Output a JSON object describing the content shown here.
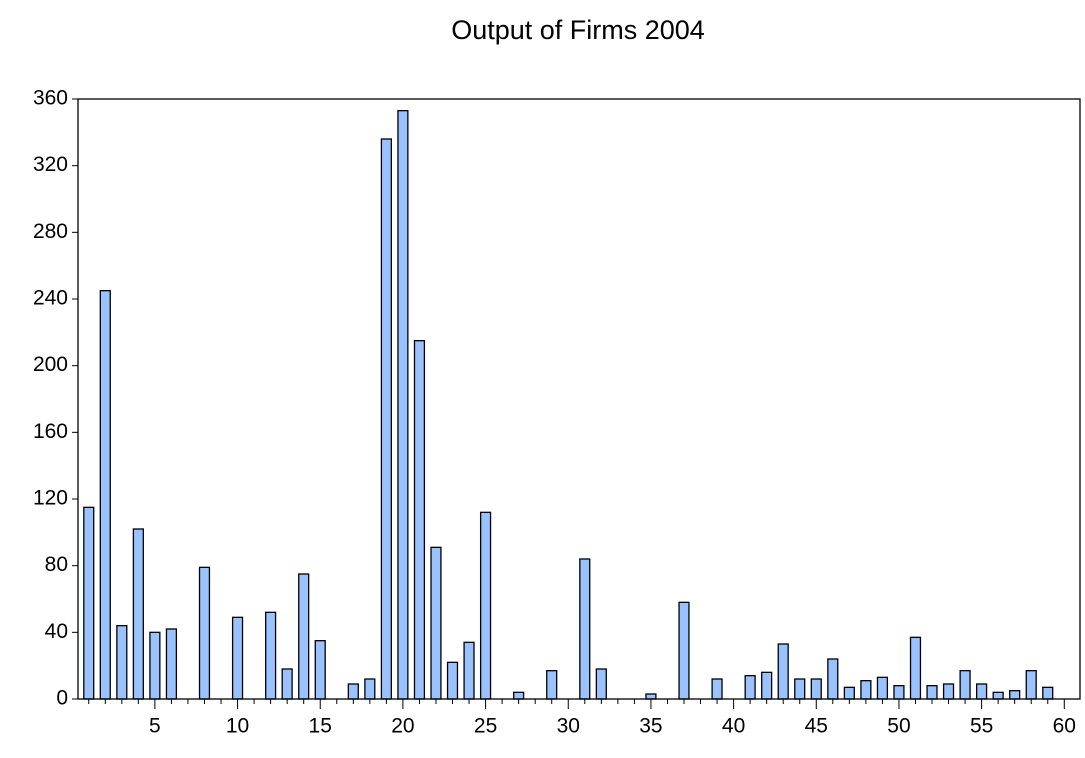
{
  "chart_data": {
    "type": "bar",
    "title": "Output of Firms 2004",
    "x": [
      1,
      2,
      3,
      4,
      5,
      6,
      8,
      10,
      12,
      13,
      14,
      15,
      17,
      18,
      19,
      20,
      21,
      22,
      23,
      24,
      25,
      27,
      29,
      31,
      32,
      35,
      37,
      39,
      41,
      42,
      43,
      44,
      45,
      46,
      47,
      48,
      49,
      50,
      51,
      52,
      53,
      54,
      55,
      56,
      57,
      58,
      59
    ],
    "values": [
      115,
      245,
      44,
      102,
      40,
      42,
      79,
      49,
      52,
      18,
      75,
      35,
      9,
      12,
      336,
      353,
      215,
      91,
      22,
      34,
      112,
      4,
      17,
      84,
      18,
      3,
      58,
      12,
      14,
      16,
      33,
      12,
      12,
      24,
      7,
      11,
      13,
      8,
      37,
      8,
      9,
      17,
      9,
      4,
      5,
      17,
      7
    ],
    "color": "#99c2ff",
    "xlim": [
      0.35,
      60.95
    ],
    "xticks": [
      5,
      10,
      15,
      20,
      25,
      30,
      35,
      40,
      45,
      50,
      55,
      60
    ],
    "xminorticks": [
      1,
      2,
      3,
      4,
      6,
      7,
      8,
      9,
      11,
      12,
      13,
      14,
      16,
      17,
      18,
      19,
      21,
      22,
      23,
      24,
      26,
      27,
      28,
      29,
      31,
      32,
      33,
      34,
      36,
      37,
      38,
      39,
      41,
      42,
      43,
      44,
      46,
      47,
      48,
      49,
      51,
      52,
      53,
      54,
      56,
      57,
      58,
      59
    ],
    "ylim": [
      0,
      360
    ],
    "yticks": [
      0,
      40,
      80,
      120,
      160,
      200,
      240,
      280,
      320,
      360
    ],
    "grid": false
  }
}
